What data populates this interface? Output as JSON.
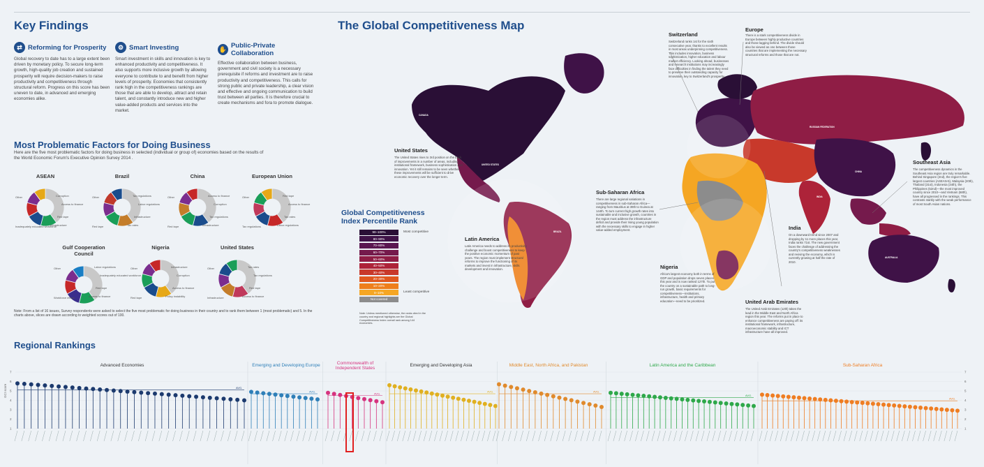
{
  "headers": {
    "key_findings": "Key Findings",
    "map_title": "The Global Competitiveness Map",
    "problematic": "Most Problematic Factors for Doing Business",
    "regional": "Regional Rankings"
  },
  "key_findings": [
    {
      "title": "Reforming for Prosperity",
      "icon": "⇄",
      "text": "Global recovery to date has to a large extent been driven by monetary policy. To secure long-term growth, high-quality job creation and sustained prosperity will require decision-makers to raise productivity and competitiveness through structural reform. Progress on this score has been uneven to date, in advanced and emerging economies alike."
    },
    {
      "title": "Smart Investing",
      "icon": "⚙",
      "text": "Smart investment in skills and innovation is key to enhanced productivity and competitiveness. It also supports more inclusive growth by allowing everyone to contribute to and benefit from higher levels of prosperity. Economies that consistently rank high in the competitiveness rankings are those that are able to develop, attract and retain talent, and constantly introduce new and higher value-added products and services into the market."
    },
    {
      "title": "Public-Private Collaboration",
      "icon": "✋",
      "text": "Effective collaboration between business, government and civil society is a necessary prerequisite if reforms and investment are to raise productivity and competitiveness. This calls for strong public and private leadership, a clear vision and effective and ongoing communication to build trust between all parties. It is therefore crucial to create mechanisms and fora to promote dialogue."
    }
  ],
  "problematic_intro": "Here are the five most problematic factors for doing business in selected (individual or group of) economies based on the results of the World Economic Forum's Executive Opinion Survey 2014 .",
  "donuts": [
    {
      "title": "ASEAN",
      "labels": [
        "Other",
        "Corruption",
        "Access to finance",
        "Red tape",
        "Infrastructure",
        "Inadequately educated workforce"
      ]
    },
    {
      "title": "Brazil",
      "labels": [
        "Other",
        "Tax regulations",
        "Labor regulations",
        "Infrastructure",
        "Tax rates",
        "Red tape"
      ]
    },
    {
      "title": "China",
      "labels": [
        "Other",
        "Access to finance",
        "Corruption",
        "Tax regulations",
        "Infrastructure",
        "Red tape"
      ]
    },
    {
      "title": "European Union",
      "labels": [
        "Other",
        "Red tape",
        "Access to finance",
        "Tax rates",
        "Labor regulations",
        "Tax regulations"
      ]
    },
    {
      "title": "Gulf Cooperation Council",
      "labels": [
        "Other",
        "Labor regulations",
        "Inadequately educated workforce",
        "Red tape",
        "Access to finance",
        "Workforce ethics"
      ]
    },
    {
      "title": "Nigeria",
      "labels": [
        "Other",
        "Infrastructure",
        "Corruption",
        "Access to finance",
        "Policy instability",
        "Red tape"
      ]
    },
    {
      "title": "United States",
      "labels": [
        "Other",
        "Tax rates",
        "Tax regulations",
        "Red tape",
        "Access to finance",
        "Infrastructure"
      ]
    }
  ],
  "donut_note": "Note: From a list of 16 issues, Survey respondents were asked to select the five most problematic for doing business in their country and to rank them between 1 (most problematic) and 5. In the charts above, slices are drawn according to weighted scores out of 100.",
  "map": {
    "legend_title": "Global Competitiveness Index Percentile Rank",
    "legend": [
      {
        "label": "90–100%",
        "color": "#2a0f36"
      },
      {
        "label": "80–90%",
        "color": "#3f1247"
      },
      {
        "label": "70–80%",
        "color": "#5a1650"
      },
      {
        "label": "60–70%",
        "color": "#751a4c"
      },
      {
        "label": "50–60%",
        "color": "#8f1d45"
      },
      {
        "label": "40–50%",
        "color": "#ad2339"
      },
      {
        "label": "30–40%",
        "color": "#c8392b"
      },
      {
        "label": "20–30%",
        "color": "#e0591f"
      },
      {
        "label": "10–20%",
        "color": "#ee7f1b"
      },
      {
        "label": "0–10%",
        "color": "#f5a623"
      },
      {
        "label": "Not covered",
        "color": "#8c8c8c"
      }
    ],
    "legend_most": "Most competitive",
    "legend_least": "Least competitive",
    "legend_note": "Note: Unless mentioned otherwise, the ranks cited in the country and regional highlights are the Global Competitiveness Index overall rank among 144 economies.",
    "country_labels": [
      "UNITED STATES",
      "CANADA",
      "BRAZIL",
      "RUSSIAN FEDERATION",
      "CHINA",
      "AUSTRALIA",
      "INDIA"
    ],
    "callouts": [
      {
        "title": "United States",
        "text": "The United States rises to 3rd position on the back of improvements in a number of areas, including institutional framework, business sophistication and innovation. Yet it still remains to be seen whether these improvements will be sufficient to drive economic recovery over the longer term."
      },
      {
        "title": "Latin America",
        "text": "Latin America needs to address its productivity challenge and boost competitiveness to keep the positive economic momentum of past years. The region must implement structural reforms to improve the functioning of its markets and invest in infrastructure, skills development and innovation."
      },
      {
        "title": "Switzerland",
        "text": "Switzerland ranks 1st for the sixth consecutive year, thanks to excellent results in most areas underpinning competitiveness. This includes innovation, business sophistication, higher education and labour market efficiency. Looking ahead, businesses and research institutions may increasingly face difficulties in finding the talent they need to preserve their outstanding capacity for innovation, key to Switzerland's prosperity."
      },
      {
        "title": "Europe",
        "text": "There is a stark competitiveness divide in Europe between highly productive countries and those lagging behind. The divide should also be viewed as one between those countries that are implementing the necessary structural reforms and those that are not."
      },
      {
        "title": "Sub-Saharan Africa",
        "text": "There are large regional variations in competitiveness in sub-Saharan Africa—ranging from Mauritius at 39th to Guinea at 144th. To turn current high growth rates into sustainable and inclusive growth, countries in the region must address the infrastructure deficit and provide their rising young population with the necessary skills to engage in higher value-added employment."
      },
      {
        "title": "Nigeria",
        "text": "Africa's largest economy both in terms of GDP and population drops seven places this year and is now ranked 127th. To put the country on a sustainable path to long-run growth, basic requirements for competitiveness—institutions, infrastructure, health and primary education—need to be prioritized."
      },
      {
        "title": "United Arab Emirates",
        "text": "The United Arab Emirates (12th) takes the lead in the Middle East and North Africa region this year. The reforms put in place to enhance competitiveness are paying off: its institutional framework, infrastructure, macroeconomic stability and ICT infrastructure have all improved."
      },
      {
        "title": "India",
        "text": "On a downward trend since 2007 and dropping by 11 more places this year, India ranks 71st. The new government faces the challenge of addressing the country's competitiveness weaknesses and reviving the economy, which is currently growing at half the rate of 2010."
      },
      {
        "title": "Southeast Asia",
        "text": "The competitiveness dynamics in the Southeast Asia region are truly remarkable. Behind Singapore (2nd), the region's five largest countries (ASEAN-5), Malaysia (20th), Thailand (31st), Indonesia (34th), the Philippines (52nd)—the most improved country since 2010—and Vietnam (68th), have all progressed in the rankings. This contrasts starkly with the weak performance of most South Asian nations."
      }
    ]
  },
  "rankings": {
    "y_label": "GCI score",
    "avg_label": "AVG.",
    "categories": [
      {
        "name": "Advanced Economies",
        "color": "#1c3a6e"
      },
      {
        "name": "Emerging and Developing Europe",
        "color": "#2e7fb8"
      },
      {
        "name": "Commonwealth of Independent States",
        "color": "#d6337f"
      },
      {
        "name": "Emerging and Developing Asia",
        "color": "#e0b020"
      },
      {
        "name": "Middle East, North Africa, and Pakistan",
        "color": "#e08a2c"
      },
      {
        "name": "Latin America and the Caribbean",
        "color": "#2ea84a"
      },
      {
        "name": "Sub-Saharan Africa",
        "color": "#ef7d22"
      }
    ],
    "y_ticks": [
      "1",
      "2",
      "3",
      "4",
      "5",
      "6",
      "7"
    ]
  }
}
